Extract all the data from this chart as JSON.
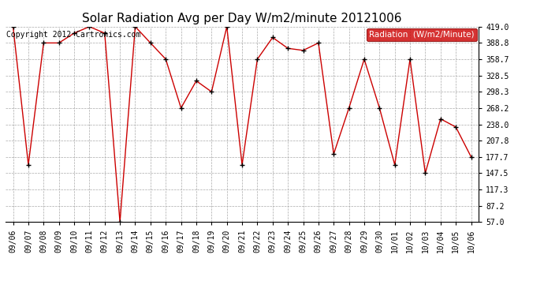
{
  "title": "Solar Radiation Avg per Day W/m2/minute 20121006",
  "copyright_text": "Copyright 2012 Cartronics.com",
  "legend_label": "Radiation  (W/m2/Minute)",
  "dates": [
    "09/06",
    "09/07",
    "09/08",
    "09/09",
    "09/10",
    "09/11",
    "09/12",
    "09/13",
    "09/14",
    "09/15",
    "09/16",
    "09/17",
    "09/18",
    "09/19",
    "09/20",
    "09/21",
    "09/22",
    "09/23",
    "09/24",
    "09/25",
    "09/26",
    "09/27",
    "09/28",
    "09/29",
    "09/30",
    "10/01",
    "10/02",
    "10/03",
    "10/04",
    "10/05",
    "10/06"
  ],
  "values": [
    419.0,
    163.0,
    388.8,
    388.8,
    406.9,
    419.0,
    406.9,
    57.0,
    419.0,
    388.8,
    358.7,
    268.2,
    318.5,
    298.3,
    419.0,
    163.0,
    358.7,
    398.9,
    378.8,
    375.0,
    388.8,
    183.0,
    268.2,
    358.7,
    268.2,
    163.0,
    358.7,
    147.5,
    248.1,
    233.0,
    177.7
  ],
  "yticks": [
    57.0,
    87.2,
    117.3,
    147.5,
    177.7,
    207.8,
    238.0,
    268.2,
    298.3,
    328.5,
    358.7,
    388.8,
    419.0
  ],
  "ymin": 57.0,
  "ymax": 419.0,
  "line_color": "#cc0000",
  "marker_color": "#000000",
  "bg_color": "#ffffff",
  "plot_bg_color": "#ffffff",
  "grid_color": "#aaaaaa",
  "legend_bg": "#cc0000",
  "legend_text_color": "#ffffff",
  "copyright_color": "#000000",
  "title_fontsize": 11,
  "tick_fontsize": 7,
  "copyright_fontsize": 7,
  "legend_fontsize": 7.5
}
